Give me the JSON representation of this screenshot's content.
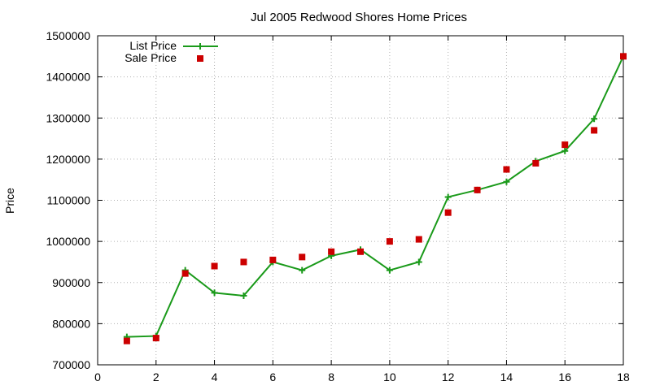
{
  "chart_data": {
    "type": "line",
    "title": "Jul 2005 Redwood Shores Home Prices",
    "xlabel": "",
    "ylabel": "Price",
    "xlim": [
      0,
      18
    ],
    "ylim": [
      700000,
      1500000
    ],
    "xticks": [
      0,
      2,
      4,
      6,
      8,
      10,
      12,
      14,
      16,
      18
    ],
    "yticks": [
      700000,
      800000,
      900000,
      1000000,
      1100000,
      1200000,
      1300000,
      1400000,
      1500000
    ],
    "grid": true,
    "legend": "top-left",
    "series": [
      {
        "name": "List Price",
        "style": "line-with-plus-markers",
        "color": "#1a9a1a",
        "x": [
          1,
          2,
          3,
          4,
          5,
          6,
          7,
          8,
          9,
          10,
          11,
          12,
          13,
          14,
          15,
          16,
          17,
          18
        ],
        "y": [
          768000,
          770000,
          930000,
          875000,
          868000,
          950000,
          930000,
          965000,
          980000,
          930000,
          950000,
          1108000,
          1125000,
          1145000,
          1195000,
          1220000,
          1298000,
          1450000
        ]
      },
      {
        "name": "Sale Price",
        "style": "square-markers",
        "color": "#cc0000",
        "x": [
          1,
          2,
          3,
          4,
          5,
          6,
          7,
          8,
          9,
          10,
          11,
          12,
          13,
          14,
          15,
          16,
          17,
          18
        ],
        "y": [
          758000,
          765000,
          922000,
          940000,
          950000,
          955000,
          962000,
          975000,
          975000,
          1000000,
          1005000,
          1070000,
          1125000,
          1175000,
          1190000,
          1235000,
          1270000,
          1450000
        ]
      }
    ]
  }
}
